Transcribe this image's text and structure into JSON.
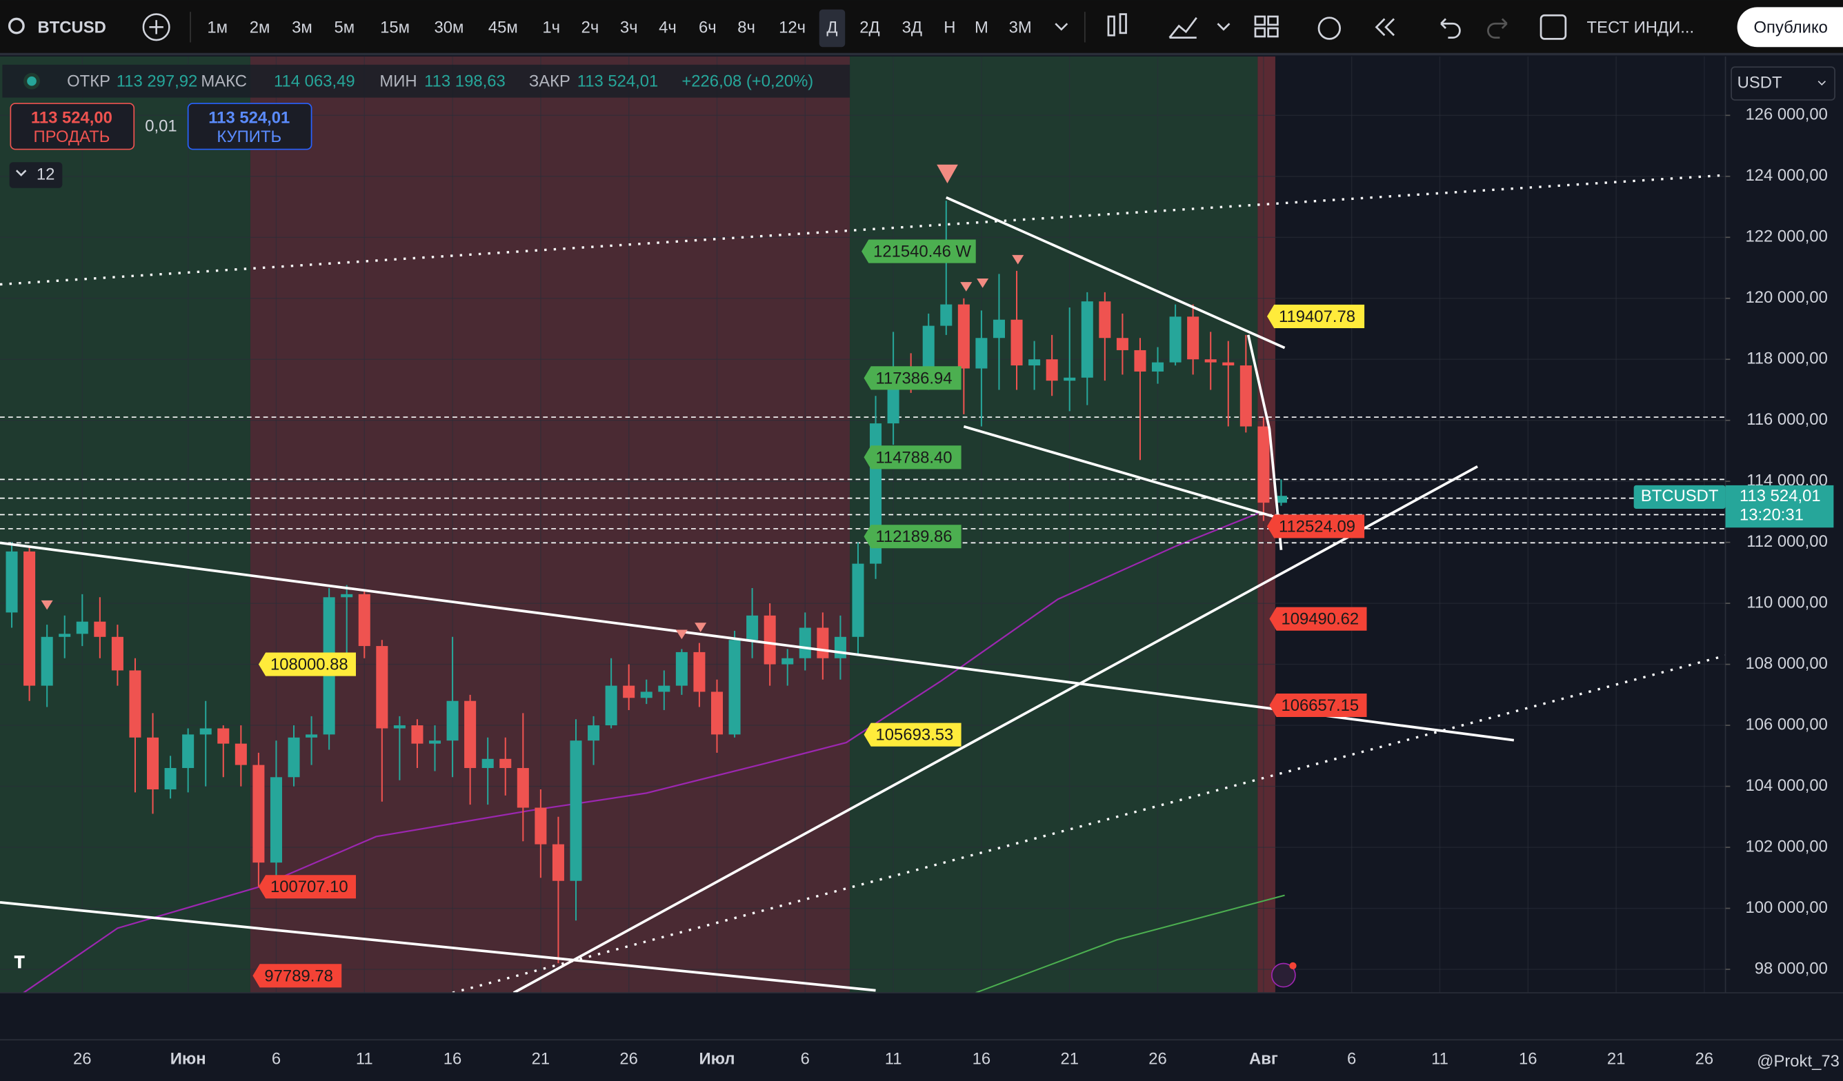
{
  "toolbar": {
    "symbol": "BTCUSD",
    "intervals": [
      "1м",
      "2м",
      "3м",
      "5м",
      "15м",
      "30м",
      "45м",
      "1ч",
      "2ч",
      "3ч",
      "4ч",
      "6ч",
      "8ч",
      "12ч",
      "Д",
      "2Д",
      "3Д",
      "Н",
      "М",
      "3М"
    ],
    "active_interval": 14,
    "indicator": "ТЕСТ ИНДИ...",
    "publish": "Опублико"
  },
  "legend": {
    "items": [
      {
        "label": "ОТКР",
        "value": "113 297,92"
      },
      {
        "label": "МАКС",
        "value": "114 063,49"
      },
      {
        "label": "МИН",
        "value": "113 198,63"
      },
      {
        "label": "ЗАКР",
        "value": "113 524,01"
      }
    ],
    "change": "+226,08 (+0,20%)",
    "sell": {
      "price": "113 524,00",
      "label": "ПРОДАТЬ"
    },
    "spread": "0,01",
    "buy": {
      "price": "113 524,01",
      "label": "КУПИТЬ"
    },
    "indicators_count": "12"
  },
  "currency": "USDT",
  "price_tag": {
    "symbol": "BTCUSDT",
    "price": "113 524,01",
    "countdown": "13:20:31"
  },
  "watermark": "@Prokt_73",
  "chart_data": {
    "type": "candlestick",
    "categories": [
      null,
      null,
      null,
      null,
      "26",
      null,
      null,
      null,
      null,
      null,
      "Июн",
      null,
      null,
      null,
      null,
      "6",
      null,
      null,
      null,
      null,
      "11",
      null,
      null,
      null,
      null,
      "16",
      null,
      null,
      null,
      null,
      "21",
      null,
      null,
      null,
      null,
      "26",
      null,
      null,
      null,
      null,
      "Июл",
      null,
      null,
      null,
      null,
      "6",
      null,
      null,
      null,
      null,
      "11",
      null,
      null,
      null,
      null,
      "16",
      null,
      null,
      null,
      null,
      "21",
      null,
      null,
      null,
      null,
      "26",
      null,
      null,
      null,
      null,
      null,
      "Авг",
      null,
      null,
      null,
      null,
      "6",
      null,
      null,
      null,
      null,
      "11",
      null,
      null,
      null,
      null,
      "16",
      null,
      null,
      null,
      null,
      "21",
      null,
      null,
      null,
      null,
      "26",
      null,
      null,
      null
    ],
    "open": [
      109700,
      111700,
      107300,
      108900,
      109000,
      109400,
      108900,
      107800,
      105600,
      103900,
      104600,
      105700,
      105900,
      105400,
      104700,
      101500,
      104300,
      105600,
      105700,
      110200,
      110300,
      108600,
      105900,
      106000,
      105400,
      105500,
      106800,
      104600,
      104900,
      104600,
      103300,
      102100,
      100900,
      105500,
      106000,
      107300,
      106900,
      107100,
      107300,
      108400,
      107100,
      105700,
      108800,
      109600,
      108000,
      108200,
      109200,
      108200,
      108900,
      111300,
      115900,
      117500,
      117400,
      119100,
      119800,
      117700,
      118700,
      119300,
      117800,
      118000,
      117300,
      117400,
      119900,
      118700,
      118300,
      117600,
      117900,
      119400,
      118000,
      117900,
      117800,
      115800,
      113297.92,
      null,
      null,
      null,
      null,
      null,
      null,
      null,
      null,
      null,
      null,
      null,
      null,
      null,
      null,
      null,
      null,
      null,
      null,
      null,
      null,
      null,
      null,
      null,
      null,
      null,
      null,
      null
    ],
    "high": [
      112000,
      111900,
      109300,
      109600,
      110300,
      110200,
      109300,
      108200,
      106400,
      105000,
      105900,
      106800,
      106000,
      106000,
      105100,
      105500,
      106000,
      106300,
      110500,
      110600,
      110400,
      108800,
      106300,
      106200,
      106000,
      108900,
      107000,
      105600,
      105600,
      106400,
      103900,
      103000,
      106200,
      106300,
      108200,
      108000,
      107500,
      107800,
      108500,
      108700,
      107500,
      109100,
      110500,
      110000,
      108500,
      109700,
      109700,
      109600,
      112000,
      116800,
      118900,
      118200,
      119500,
      123200,
      120000,
      119600,
      120800,
      120900,
      118600,
      118800,
      119700,
      120200,
      120200,
      119500,
      118700,
      118400,
      119800,
      119800,
      118900,
      118600,
      118800,
      116100,
      114063.49,
      null,
      null,
      null,
      null,
      null,
      null,
      null,
      null,
      null,
      null,
      null,
      null,
      null,
      null,
      null,
      null,
      null,
      null,
      null,
      null,
      null,
      null,
      null,
      null,
      null,
      null,
      null
    ],
    "low": [
      109200,
      106800,
      106600,
      108200,
      108600,
      108200,
      107300,
      103800,
      103100,
      103600,
      103800,
      104000,
      104300,
      104000,
      100700,
      101000,
      104000,
      104700,
      105200,
      108300,
      108200,
      103500,
      104200,
      104600,
      104500,
      104300,
      103400,
      103400,
      103700,
      102200,
      101000,
      98200,
      99600,
      104700,
      105900,
      106500,
      106700,
      106500,
      107000,
      106600,
      105100,
      105600,
      108200,
      107300,
      107300,
      107800,
      107500,
      107500,
      108300,
      110800,
      115200,
      116900,
      117000,
      118800,
      116200,
      115800,
      117000,
      117000,
      117000,
      116800,
      116300,
      116500,
      117300,
      117500,
      114700,
      117200,
      117800,
      117500,
      117000,
      115800,
      115600,
      112700,
      113198.63,
      null,
      null,
      null,
      null,
      null,
      null,
      null,
      null,
      null,
      null,
      null,
      null,
      null,
      null,
      null,
      null,
      null,
      null,
      null,
      null,
      null,
      null,
      null,
      null,
      null,
      null,
      null
    ],
    "close": [
      111700,
      107300,
      108900,
      109000,
      109400,
      108900,
      107800,
      105600,
      103900,
      104600,
      105700,
      105900,
      105400,
      104700,
      101500,
      104300,
      105600,
      105700,
      110200,
      110300,
      108600,
      105900,
      106000,
      105400,
      105500,
      106800,
      104600,
      104900,
      104600,
      103300,
      102100,
      100900,
      105500,
      106000,
      107300,
      106900,
      107100,
      107300,
      108400,
      107100,
      105700,
      108800,
      109600,
      108000,
      108200,
      109200,
      108200,
      108900,
      111300,
      115900,
      117500,
      117400,
      119100,
      119800,
      117700,
      118700,
      119300,
      117800,
      118000,
      117300,
      117400,
      119900,
      118700,
      118300,
      117600,
      117900,
      119400,
      118000,
      117900,
      117800,
      115800,
      113300,
      113524.01,
      null,
      null,
      null,
      null,
      null,
      null,
      null,
      null,
      null,
      null,
      null,
      null,
      null,
      null,
      null,
      null,
      null,
      null,
      null,
      null,
      null,
      null,
      null,
      null,
      null,
      null,
      null
    ],
    "up_color": "#26a69a",
    "down_color": "#ef5350",
    "ylim": [
      97230,
      127930
    ],
    "yticks": [
      {
        "value": 98000,
        "label": "98 000,00"
      },
      {
        "value": 100000,
        "label": "100 000,00"
      },
      {
        "value": 102000,
        "label": "102 000,00"
      },
      {
        "value": 104000,
        "label": "104 000,00"
      },
      {
        "value": 106000,
        "label": "106 000,00"
      },
      {
        "value": 108000,
        "label": "108 000,00"
      },
      {
        "value": 110000,
        "label": "110 000,00"
      },
      {
        "value": 112000,
        "label": "112 000,00"
      },
      {
        "value": 114000,
        "label": "114 000,00"
      },
      {
        "value": 116000,
        "label": "116 000,00"
      },
      {
        "value": 118000,
        "label": "118 000,00"
      },
      {
        "value": 120000,
        "label": "120 000,00"
      },
      {
        "value": 122000,
        "label": "122 000,00"
      },
      {
        "value": 124000,
        "label": "124 000,00"
      },
      {
        "value": 126000,
        "label": "126 000,00"
      }
    ],
    "annotations": [
      {
        "text": "121540.46 W",
        "value": 121540.46,
        "color": "#4caf50"
      },
      {
        "text": "117386.94",
        "value": 117386.94,
        "color": "#4caf50"
      },
      {
        "text": "114788.40",
        "value": 114788.4,
        "color": "#4caf50"
      },
      {
        "text": "112189.86",
        "value": 112189.86,
        "color": "#4caf50"
      },
      {
        "text": "105693.53",
        "value": 105693.53,
        "color": "#ffeb3b"
      },
      {
        "text": "119407.78",
        "value": 119407.78,
        "color": "#ffeb3b"
      },
      {
        "text": "112524.09",
        "value": 112524.09,
        "color": "#f44336"
      },
      {
        "text": "109490.62",
        "value": 109490.62,
        "color": "#f44336"
      },
      {
        "text": "106657.15",
        "value": 106657.15,
        "color": "#f44336"
      },
      {
        "text": "108000.88",
        "value": 108000.88,
        "color": "#ffeb3b"
      },
      {
        "text": "100707.10",
        "value": 100707.1,
        "color": "#f44336"
      },
      {
        "text": "97789.78",
        "value": 97789.78,
        "color": "#f44336"
      }
    ]
  }
}
